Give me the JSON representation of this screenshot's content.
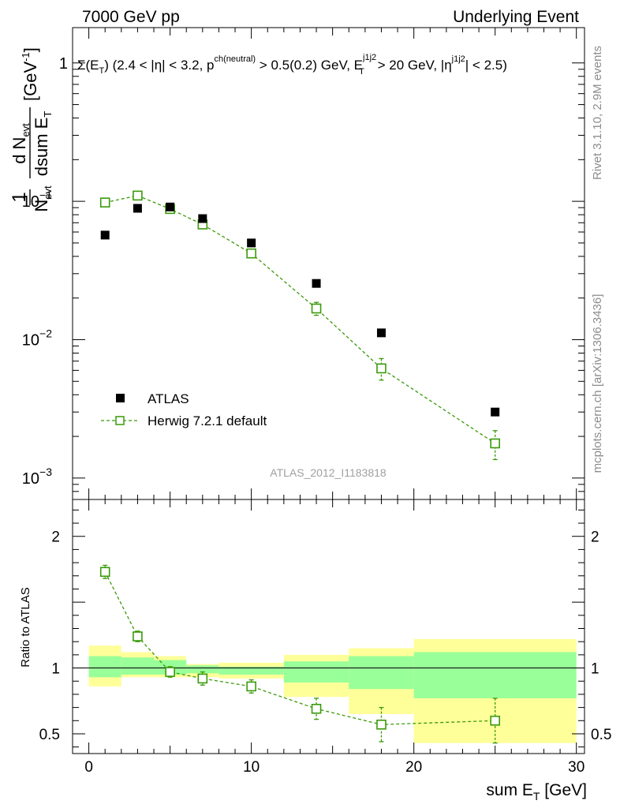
{
  "header": {
    "left": "7000 GeV pp",
    "right": "Underlying Event"
  },
  "side_labels": {
    "rivet": "Rivet 3.1.10,  2.9M events",
    "mcplots": "mcplots.cern.ch [arXiv:1306.3436]"
  },
  "chart_data": [
    {
      "type": "scatter",
      "panel": "main",
      "title": "Σ(E_T) (2.4 < |η| < 3.2, p^ch(neutral) > 0.5(0.2) GeV, E_T^j1j2 > 20 GeV, |η^j1j2| < 2.5)",
      "title_parts": {
        "sigma": "Σ(E",
        "t_sub": "T",
        "mid1": ") (2.4 < |η| < 3.2, p",
        "ch_sup": "ch(neutral)",
        "mid2": " > 0.5(0.2) GeV, E",
        "j_sup": "j1j2",
        "t_sub2": "T",
        "mid3": " > 20 GeV, |η",
        "j_sup2": "j1j2",
        "end": "| < 2.5)"
      },
      "ylabel": "1/N_evt dN_evt/dsum E_T [GeV^-1]",
      "ylabel_parts": {
        "one": "1",
        "nevt": "N",
        "evt_sub": "evt",
        "dn": "d N",
        "evt_sub2": "evt",
        "dsum": "dsum E",
        "t_sub": "T",
        "unit": "[GeV",
        "unit_sup": "-1",
        "unit_end": "]"
      },
      "ylog": true,
      "ylim": [
        0.0007,
        1.8
      ],
      "xlim": [
        -1,
        30.5
      ],
      "yticks": [
        {
          "value": 1,
          "label": "1"
        },
        {
          "value": 0.1,
          "label": "10",
          "sup": "−1"
        },
        {
          "value": 0.01,
          "label": "10",
          "sup": "−2"
        },
        {
          "value": 0.001,
          "label": "10",
          "sup": "−3"
        }
      ],
      "watermark": "ATLAS_2012_I1183818",
      "legend": {
        "placement": "lower-left",
        "entries": [
          "ATLAS",
          "Herwig 7.2.1 default"
        ]
      },
      "series": [
        {
          "name": "ATLAS",
          "color": "#000000",
          "marker": "filled-square",
          "x": [
            1,
            3,
            5,
            7,
            10,
            14,
            18,
            25
          ],
          "y": [
            0.057,
            0.089,
            0.091,
            0.075,
            0.05,
            0.0255,
            0.0112,
            0.003
          ]
        },
        {
          "name": "Herwig 7.2.1 default",
          "color": "#3a9a0a",
          "marker": "open-square",
          "line": "dashed",
          "x": [
            1,
            3,
            5,
            7,
            10,
            14,
            18,
            25
          ],
          "y": [
            0.098,
            0.11,
            0.088,
            0.068,
            0.042,
            0.0168,
            0.0062,
            0.00178
          ],
          "yerr_low": [
            0.002,
            0.002,
            0.002,
            0.002,
            0.002,
            0.0018,
            0.0011,
            0.00042
          ],
          "yerr_high": [
            0.002,
            0.002,
            0.002,
            0.002,
            0.002,
            0.0018,
            0.0011,
            0.00042
          ]
        }
      ]
    },
    {
      "type": "scatter",
      "panel": "ratio",
      "ylabel": "Ratio to ATLAS",
      "xlabel": "sum E_T [GeV]",
      "xlabel_parts": {
        "main": "sum E",
        "t_sub": "T",
        "unit": " [GeV]"
      },
      "ylim": [
        0.35,
        2.28
      ],
      "xlim": [
        -1,
        30.5
      ],
      "yticks": [
        {
          "value": 0.5,
          "label": "0.5"
        },
        {
          "value": 1,
          "label": "1"
        },
        {
          "value": 2,
          "label": "2"
        }
      ],
      "xticks": [
        {
          "value": 0,
          "label": "0"
        },
        {
          "value": 10,
          "label": "10"
        },
        {
          "value": 20,
          "label": "20"
        },
        {
          "value": 30,
          "label": "30"
        }
      ],
      "bands": [
        {
          "x": [
            0,
            2
          ],
          "yellow": [
            0.86,
            1.17
          ],
          "green": [
            0.93,
            1.09
          ]
        },
        {
          "x": [
            2,
            4
          ],
          "yellow": [
            0.93,
            1.12
          ],
          "green": [
            0.95,
            1.08
          ]
        },
        {
          "x": [
            4,
            6
          ],
          "yellow": [
            0.93,
            1.09
          ],
          "green": [
            0.95,
            1.06
          ]
        },
        {
          "x": [
            6,
            8
          ],
          "yellow": [
            0.93,
            1.03
          ],
          "green": [
            0.96,
            1.02
          ]
        },
        {
          "x": [
            8,
            12
          ],
          "yellow": [
            0.92,
            1.04
          ],
          "green": [
            0.95,
            1.01
          ]
        },
        {
          "x": [
            12,
            16
          ],
          "yellow": [
            0.78,
            1.1
          ],
          "green": [
            0.89,
            1.05
          ]
        },
        {
          "x": [
            16,
            20
          ],
          "yellow": [
            0.65,
            1.15
          ],
          "green": [
            0.84,
            1.09
          ]
        },
        {
          "x": [
            20,
            30
          ],
          "yellow": [
            0.43,
            1.22
          ],
          "green": [
            0.77,
            1.12
          ]
        }
      ],
      "series": [
        {
          "name": "Herwig 7.2.1 default",
          "color": "#3a9a0a",
          "marker": "open-square",
          "line": "dashed",
          "x": [
            1,
            3,
            5,
            7,
            10,
            14,
            18,
            25
          ],
          "y": [
            1.73,
            1.24,
            0.97,
            0.92,
            0.86,
            0.69,
            0.57,
            0.6
          ],
          "yerr_low": [
            0.05,
            0.04,
            0.04,
            0.05,
            0.05,
            0.08,
            0.13,
            0.17
          ],
          "yerr_high": [
            0.05,
            0.04,
            0.04,
            0.05,
            0.05,
            0.08,
            0.13,
            0.17
          ]
        }
      ]
    }
  ]
}
